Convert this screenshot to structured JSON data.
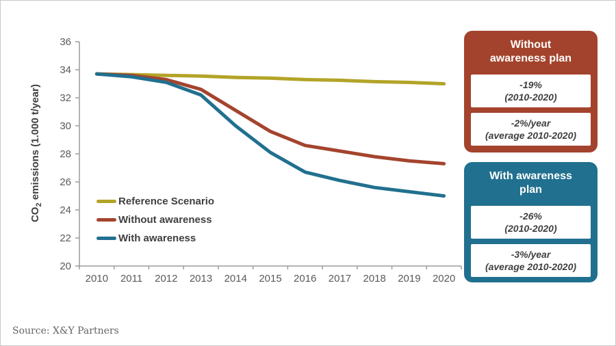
{
  "colors": {
    "reference_line": "#b3a428",
    "without_line": "#a4442e",
    "with_line": "#21708f",
    "axis": "#9b9b9b",
    "tick_text": "#595959",
    "callout_red": "#a4432d",
    "callout_blue": "#21708f"
  },
  "chart_data": {
    "type": "line",
    "x": [
      2010,
      2011,
      2012,
      2013,
      2014,
      2015,
      2016,
      2017,
      2018,
      2019,
      2020
    ],
    "series": [
      {
        "name": "Reference Scenario",
        "color": "#b3a428",
        "values": [
          33.7,
          33.65,
          33.6,
          33.55,
          33.45,
          33.4,
          33.3,
          33.25,
          33.15,
          33.1,
          33.0
        ]
      },
      {
        "name": "Without awareness",
        "color": "#a4442e",
        "values": [
          33.7,
          33.6,
          33.3,
          32.6,
          31.1,
          29.6,
          28.6,
          28.2,
          27.8,
          27.5,
          27.3
        ]
      },
      {
        "name": "With awareness",
        "color": "#21708f",
        "values": [
          33.7,
          33.5,
          33.1,
          32.2,
          30.0,
          28.1,
          26.7,
          26.1,
          25.6,
          25.3,
          25.0
        ]
      }
    ],
    "title": "",
    "xlabel": "",
    "ylabel": "CO2 emissions (1.000 t/year)",
    "ylim": [
      20,
      36
    ],
    "yticks": [
      20,
      22,
      24,
      26,
      28,
      30,
      32,
      34,
      36
    ],
    "grid": false,
    "legend_position": "inside-left"
  },
  "ylabel_parts": {
    "prefix": "CO",
    "sub": "2",
    "suffix": " emissions (1.000 t/year)"
  },
  "legend": {
    "items": [
      {
        "label": "Reference Scenario"
      },
      {
        "label": "Without awareness"
      },
      {
        "label": "With awareness"
      }
    ]
  },
  "callouts": {
    "without": {
      "title_line1": "Without",
      "title_line2": "awareness plan",
      "stat1_value": "-19%",
      "stat1_period": "(2010-2020)",
      "stat2_value": "-2%/year",
      "stat2_period": "(average 2010-2020)"
    },
    "with": {
      "title_line1": "With awareness",
      "title_line2": "plan",
      "stat1_value": "-26%",
      "stat1_period": "(2010-2020)",
      "stat2_value": "-3%/year",
      "stat2_period": "(average 2010-2020)"
    }
  },
  "footer": {
    "source": "Source: X&Y Partners"
  }
}
